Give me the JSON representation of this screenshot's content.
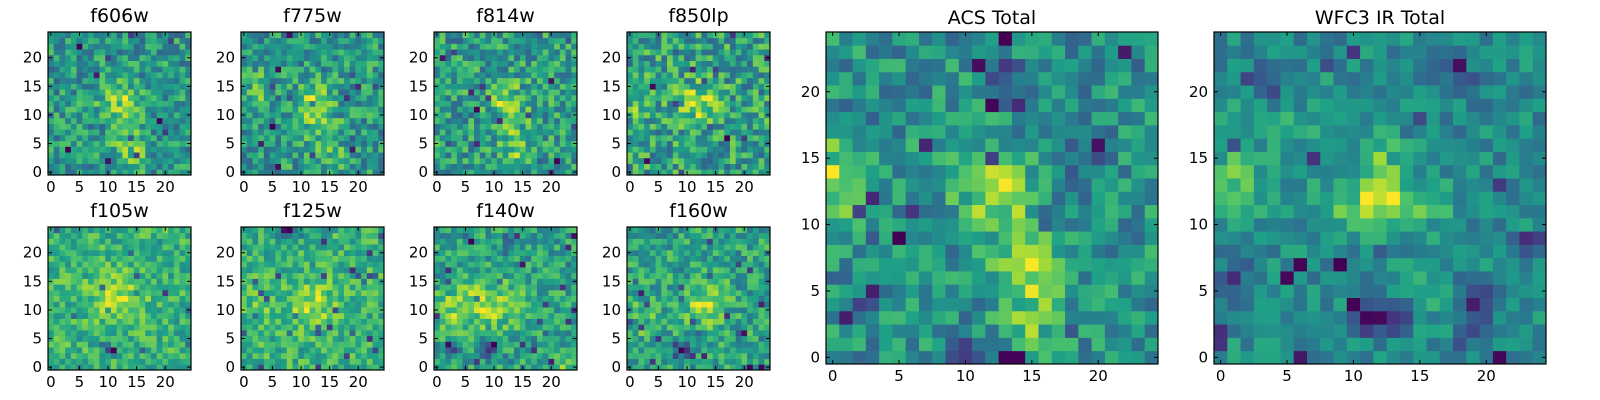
{
  "figure": {
    "description_colormap": "viridis",
    "colormap_stops": [
      "#440154",
      "#46327e",
      "#365c8d",
      "#277f8e",
      "#1fa187",
      "#4ac16d",
      "#a0da39",
      "#fde725"
    ]
  },
  "chart_data": [
    {
      "type": "heatmap",
      "title": "f606w",
      "grid_size": 25,
      "pixel_range": [
        0,
        24
      ],
      "xticks": [
        "0",
        "5",
        "10",
        "15",
        "20"
      ],
      "yticks": [
        "0",
        "5",
        "10",
        "15",
        "20"
      ],
      "features": "noisy background; faint bright core centred near (12,13) extending downward to (14,3)"
    },
    {
      "type": "heatmap",
      "title": "f775w",
      "grid_size": 25,
      "pixel_range": [
        0,
        24
      ],
      "xticks": [
        "0",
        "5",
        "10",
        "15",
        "20"
      ],
      "yticks": [
        "0",
        "5",
        "10",
        "15",
        "20"
      ],
      "features": "noisy background; bright blob near (12,12), elongated toward (14,4)"
    },
    {
      "type": "heatmap",
      "title": "f814w",
      "grid_size": 25,
      "pixel_range": [
        0,
        24
      ],
      "xticks": [
        "0",
        "5",
        "10",
        "15",
        "20"
      ],
      "yticks": [
        "0",
        "5",
        "10",
        "15",
        "20"
      ],
      "features": "noisy background; bright source near (12,13) with tail down to (14,2)"
    },
    {
      "type": "heatmap",
      "title": "f850lp",
      "grid_size": 25,
      "pixel_range": [
        0,
        24
      ],
      "xticks": [
        "0",
        "5",
        "10",
        "15",
        "20"
      ],
      "yticks": [
        "0",
        "5",
        "10",
        "15",
        "20"
      ],
      "features": "noisy background; moderate bright source near (12,12)"
    },
    {
      "type": "heatmap",
      "title": "f105w",
      "grid_size": 25,
      "pixel_range": [
        0,
        24
      ],
      "xticks": [
        "0",
        "5",
        "10",
        "15",
        "20"
      ],
      "yticks": [
        "0",
        "5",
        "10",
        "15",
        "20"
      ],
      "features": "smoother background; bright source near (12,12)"
    },
    {
      "type": "heatmap",
      "title": "f125w",
      "grid_size": 25,
      "pixel_range": [
        0,
        24
      ],
      "xticks": [
        "0",
        "5",
        "10",
        "15",
        "20"
      ],
      "yticks": [
        "0",
        "5",
        "10",
        "15",
        "20"
      ],
      "features": "smoother background; bright source near (12,11)"
    },
    {
      "type": "heatmap",
      "title": "f140w",
      "grid_size": 25,
      "pixel_range": [
        0,
        24
      ],
      "xticks": [
        "0",
        "5",
        "10",
        "15",
        "20"
      ],
      "yticks": [
        "0",
        "5",
        "10",
        "15",
        "20"
      ],
      "features": "bright extended region around (10,12); dark knots near (3,3) and (9,3)"
    },
    {
      "type": "heatmap",
      "title": "f160w",
      "grid_size": 25,
      "pixel_range": [
        0,
        24
      ],
      "xticks": [
        "0",
        "5",
        "10",
        "15",
        "20"
      ],
      "yticks": [
        "0",
        "5",
        "10",
        "15",
        "20"
      ],
      "features": "bright source near (13,11); dark knots near (9,3)"
    },
    {
      "type": "heatmap",
      "title": "ACS Total",
      "grid_size": 25,
      "pixel_range": [
        0,
        24
      ],
      "xticks": [
        "0",
        "5",
        "10",
        "15",
        "20"
      ],
      "yticks": [
        "0",
        "5",
        "10",
        "15",
        "20"
      ],
      "features": "brightest blob at x 11-13, y 11-14 with a bright tail to (15,3); bright strip at left edge y 11-15"
    },
    {
      "type": "heatmap",
      "title": "WFC3 IR Total",
      "grid_size": 25,
      "pixel_range": [
        0,
        24
      ],
      "xticks": [
        "0",
        "5",
        "10",
        "15",
        "20"
      ],
      "yticks": [
        "0",
        "5",
        "10",
        "15",
        "20"
      ],
      "features": "bright cross-shaped source at x 10-15, y 10-13 extending up to y 16; dark knots at (12,3) and (19,4)"
    }
  ]
}
